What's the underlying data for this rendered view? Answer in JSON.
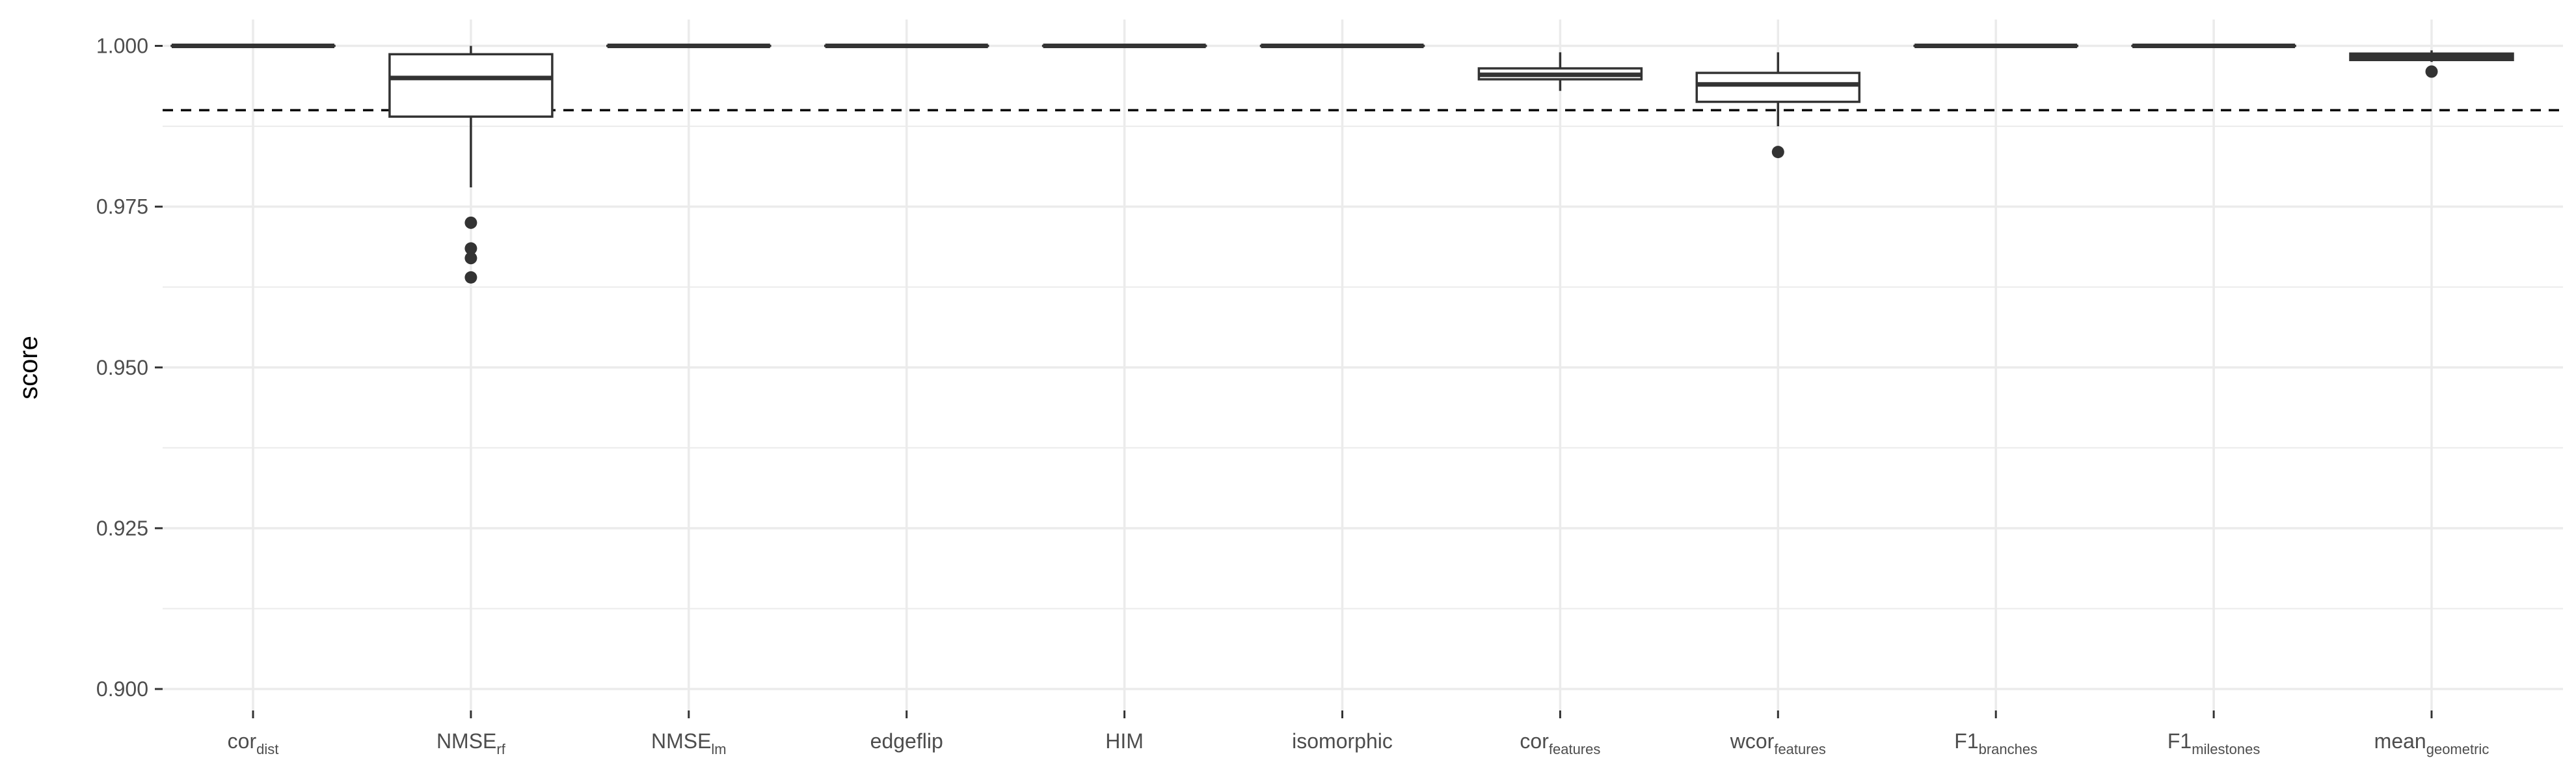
{
  "chart_data": {
    "type": "boxplot",
    "ylabel": "score",
    "xlabel": "",
    "ylim": [
      0.896,
      1.003
    ],
    "yticks": [
      "0.900",
      "0.925",
      "0.950",
      "0.975",
      "1.000"
    ],
    "ytick_values": [
      0.9,
      0.925,
      0.95,
      0.975,
      1.0
    ],
    "grid": true,
    "reference_line": {
      "y": 0.99,
      "style": "dashed"
    },
    "categories": [
      {
        "base": "cor",
        "sub": "dist"
      },
      {
        "base": "NMSE",
        "sub": "rf"
      },
      {
        "base": "NMSE",
        "sub": "lm"
      },
      {
        "base": "edgeflip",
        "sub": ""
      },
      {
        "base": "HIM",
        "sub": ""
      },
      {
        "base": "isomorphic",
        "sub": ""
      },
      {
        "base": "cor",
        "sub": "features"
      },
      {
        "base": "wcor",
        "sub": "features"
      },
      {
        "base": "F1",
        "sub": "branches"
      },
      {
        "base": "F1",
        "sub": "milestones"
      },
      {
        "base": "mean",
        "sub": "geometric"
      }
    ],
    "boxes": [
      {
        "whisker_low": 1.0,
        "q1": 1.0,
        "median": 1.0,
        "q3": 1.0,
        "whisker_high": 1.0,
        "outliers": []
      },
      {
        "whisker_low": 0.978,
        "q1": 0.989,
        "median": 0.995,
        "q3": 0.9987,
        "whisker_high": 1.0,
        "outliers": [
          0.9725,
          0.9685,
          0.967,
          0.964
        ]
      },
      {
        "whisker_low": 1.0,
        "q1": 1.0,
        "median": 1.0,
        "q3": 1.0,
        "whisker_high": 1.0,
        "outliers": []
      },
      {
        "whisker_low": 1.0,
        "q1": 1.0,
        "median": 1.0,
        "q3": 1.0,
        "whisker_high": 1.0,
        "outliers": []
      },
      {
        "whisker_low": 1.0,
        "q1": 1.0,
        "median": 1.0,
        "q3": 1.0,
        "whisker_high": 1.0,
        "outliers": []
      },
      {
        "whisker_low": 1.0,
        "q1": 1.0,
        "median": 1.0,
        "q3": 1.0,
        "whisker_high": 1.0,
        "outliers": []
      },
      {
        "whisker_low": 0.993,
        "q1": 0.9948,
        "median": 0.9955,
        "q3": 0.9965,
        "whisker_high": 0.999,
        "outliers": []
      },
      {
        "whisker_low": 0.9875,
        "q1": 0.9913,
        "median": 0.994,
        "q3": 0.9958,
        "whisker_high": 0.999,
        "outliers": [
          0.9835
        ]
      },
      {
        "whisker_low": 1.0,
        "q1": 1.0,
        "median": 1.0,
        "q3": 1.0,
        "whisker_high": 1.0,
        "outliers": []
      },
      {
        "whisker_low": 1.0,
        "q1": 1.0,
        "median": 1.0,
        "q3": 1.0,
        "whisker_high": 1.0,
        "outliers": []
      },
      {
        "whisker_low": 0.9975,
        "q1": 0.9978,
        "median": 0.9983,
        "q3": 0.9988,
        "whisker_high": 0.9993,
        "outliers": [
          0.996
        ]
      }
    ],
    "colors": {
      "box_line": "#333333",
      "grid": "#ebebeb",
      "reference": "#000000",
      "tick_text": "#4d4d4d"
    }
  }
}
